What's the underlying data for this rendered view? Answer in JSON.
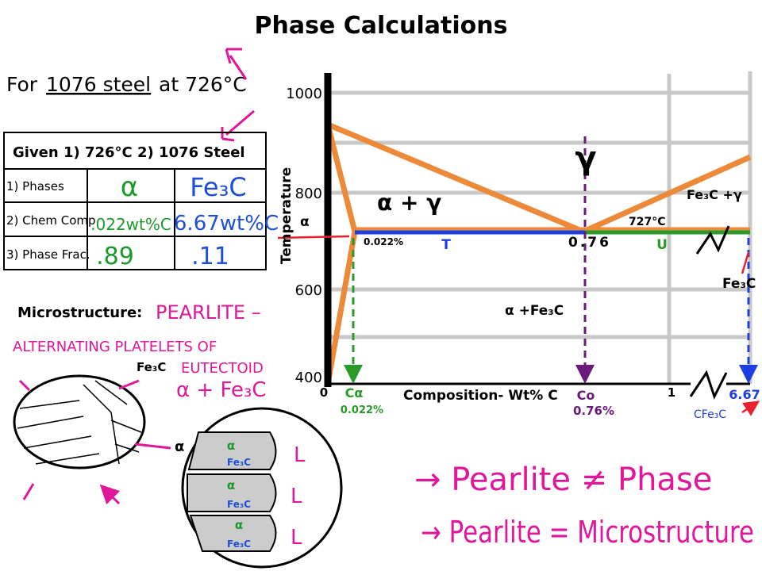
{
  "title": "Phase Calculations",
  "problem": {
    "prefix": "For",
    "steel": "1076 steel",
    "suffix": "at 726°C"
  },
  "table": {
    "header": "Given 1) 726°C  2) 1076 Steel",
    "rows": [
      [
        "1) Phases",
        "α",
        "Fe₃C"
      ],
      [
        "2) Chem Comp",
        ".022wt%C",
        "6.67wt%C"
      ],
      [
        "3) Phase Frac.",
        ".89",
        ".11"
      ]
    ]
  },
  "microstructure": {
    "label": "Microstructure:",
    "name": "PEARLITE –",
    "description": [
      "ALTERNATING PLATELETS OF",
      "EUTECTOID",
      "α + Fe₃C"
    ],
    "fe3c_label": "Fe₃C",
    "alpha_label": "α",
    "layers": [
      {
        "alpha": "α",
        "fe3c": "Fe₃C",
        "mark": "L"
      },
      {
        "alpha": "α",
        "fe3c": "Fe₃C",
        "mark": "L"
      },
      {
        "alpha": "α",
        "fe3c": "Fe₃C",
        "mark": "L"
      }
    ]
  },
  "diagram": {
    "y_axis": "Temperature",
    "x_axis": "Composition- Wt% C",
    "y_ticks": [
      1000,
      800,
      600,
      400
    ],
    "x_zero": 0,
    "x_one": 1,
    "gamma": "γ",
    "alpha_gamma": "α + γ",
    "eutectoid_temp": "727°C",
    "fe3c_gamma": "Fe₃C +γ",
    "alpha": "α",
    "fe3c": "Fe₃C",
    "alpha_fe3c": "α  +Fe₃C",
    "alpha_limit": "0.022%",
    "eutectoid_point": "0.76",
    "t": "T",
    "u": "U",
    "c_alpha": "Cα",
    "c_alpha_value": "0.022%",
    "c_o": "Co",
    "c_o_value": "0.76%",
    "c_fe3c_value": 6.67,
    "c_fe3c": "CFe₃C"
  },
  "notes": [
    "→ Pearlite ≠ Phase",
    "→ Pearlite = Microstructure"
  ]
}
